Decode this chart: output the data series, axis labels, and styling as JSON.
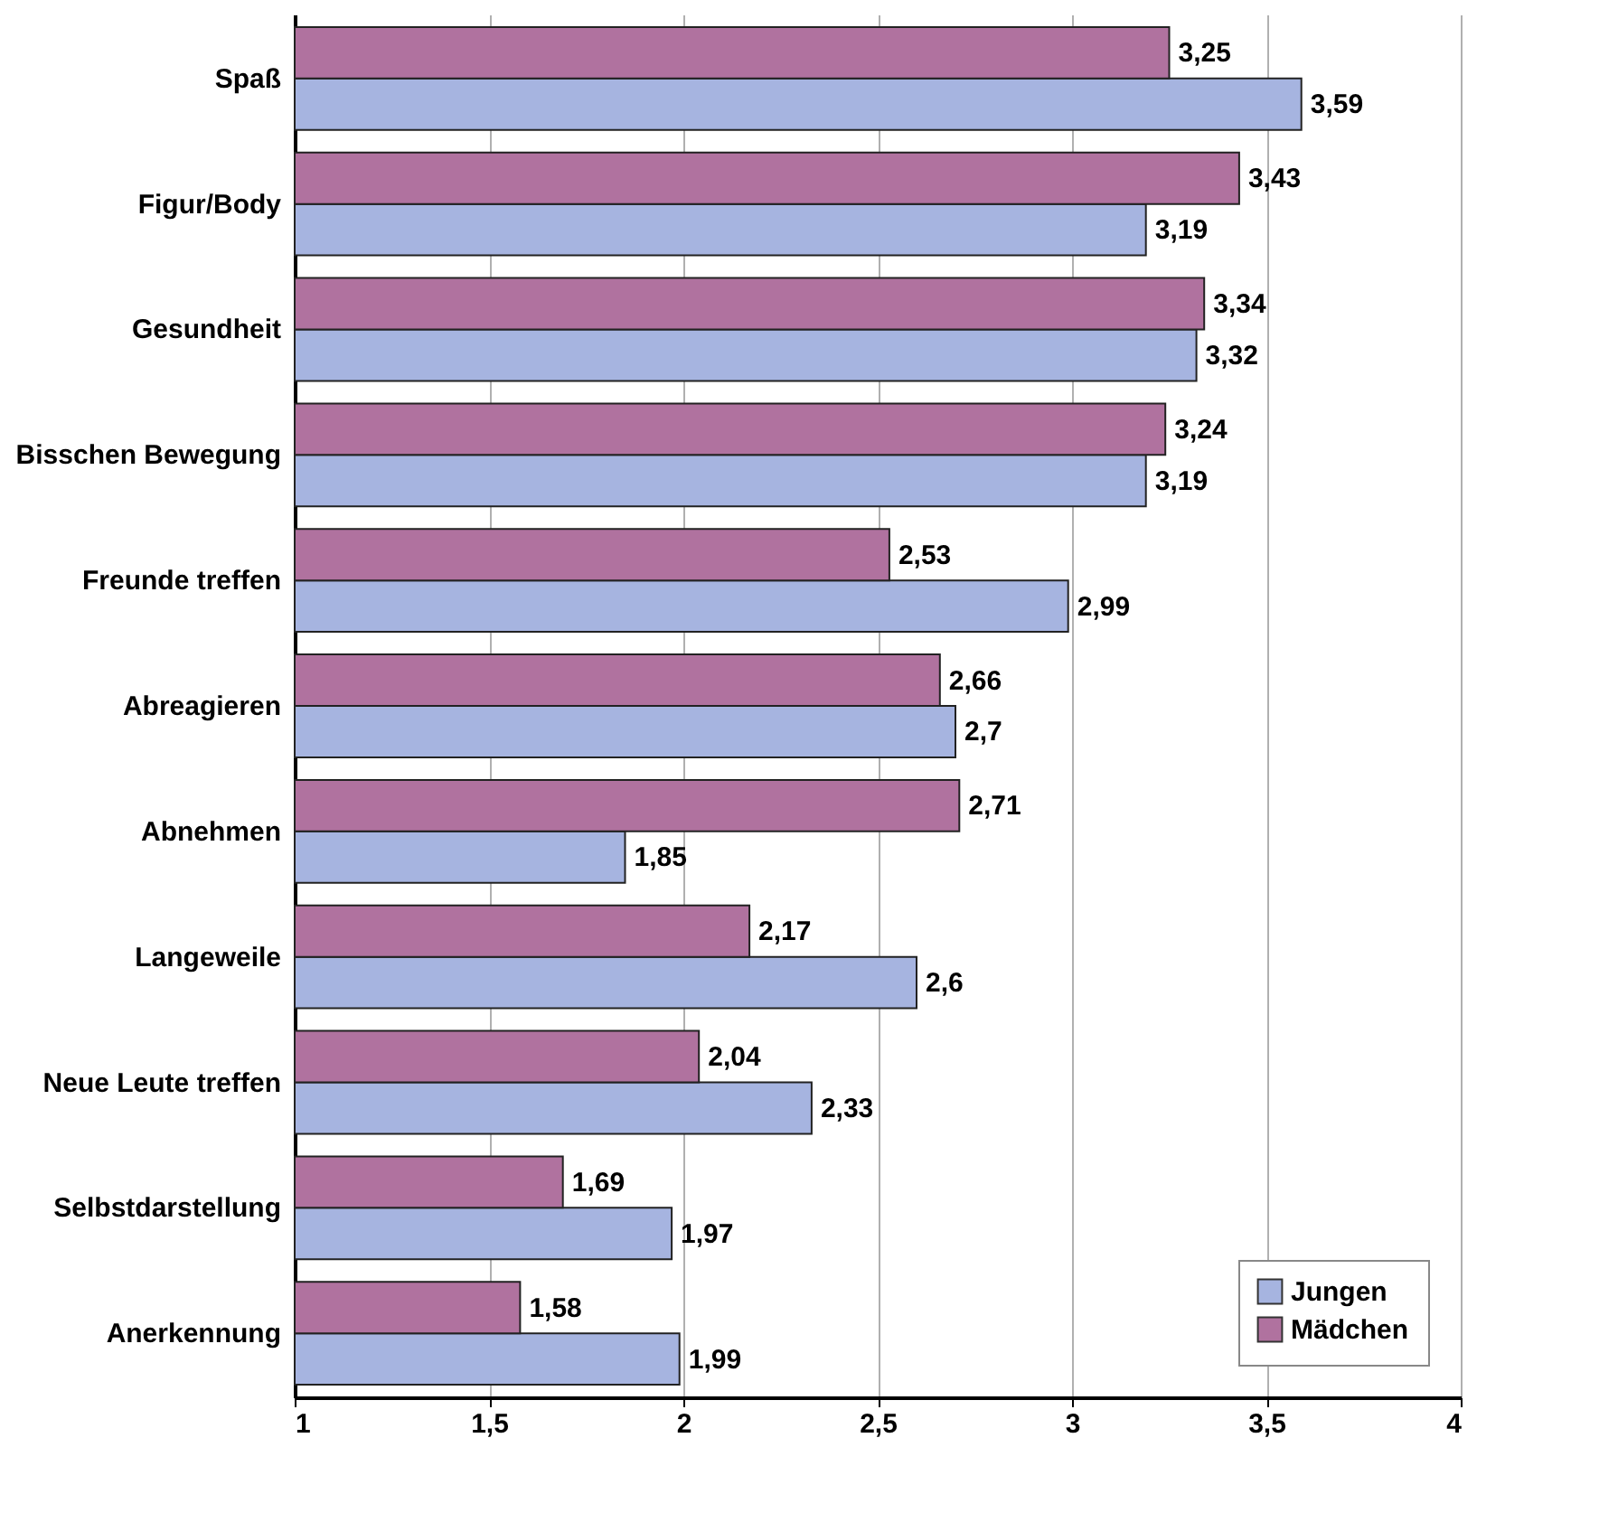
{
  "chart_data": {
    "type": "bar",
    "orientation": "horizontal",
    "categories": [
      "Spaß",
      "Figur/Body",
      "Gesundheit",
      "Bisschen Bewegung",
      "Freunde treffen",
      "Abreagieren",
      "Abnehmen",
      "Langeweile",
      "Neue Leute treffen",
      "Selbstdarstellung",
      "Anerkennung"
    ],
    "series": [
      {
        "name": "Jungen",
        "color": "#a6b4e0",
        "values": [
          3.59,
          3.19,
          3.32,
          3.19,
          2.99,
          2.7,
          1.85,
          2.6,
          2.33,
          1.97,
          1.99
        ],
        "value_labels": [
          "3,59",
          "3,19",
          "3,32",
          "3,19",
          "2,99",
          "2,7",
          "1,85",
          "2,6",
          "2,33",
          "1,97",
          "1,99"
        ]
      },
      {
        "name": "Mädchen",
        "color": "#b0729f",
        "values": [
          3.25,
          3.43,
          3.34,
          3.24,
          2.53,
          2.66,
          2.71,
          2.17,
          2.04,
          1.69,
          1.58
        ],
        "value_labels": [
          "3,25",
          "3,43",
          "3,34",
          "3,24",
          "2,53",
          "2,66",
          "2,71",
          "2,17",
          "2,04",
          "1,69",
          "1,58"
        ]
      }
    ],
    "xlim": [
      1,
      4
    ],
    "xticks": [
      1,
      {
        "value": 1.5,
        "label": "1,5"
      },
      2,
      {
        "value": 2.5,
        "label": "2,5"
      },
      3,
      {
        "value": 3.5,
        "label": "3,5"
      },
      4
    ],
    "grid": "x",
    "legend": "bottom right"
  }
}
